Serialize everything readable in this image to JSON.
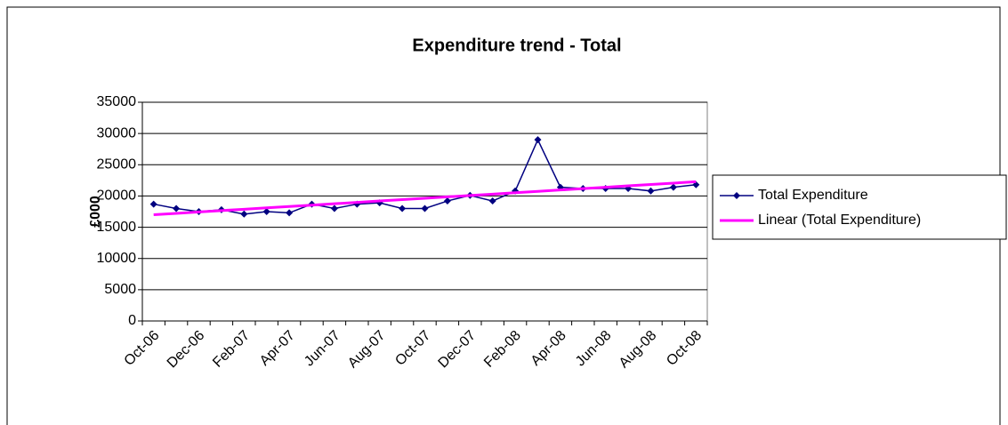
{
  "chart_data": {
    "type": "line",
    "title": "Expenditure trend - Total",
    "y_label": "£000",
    "categories": [
      "Oct-06",
      null,
      "Dec-06",
      null,
      "Feb-07",
      null,
      "Apr-07",
      null,
      "Jun-07",
      null,
      "Aug-07",
      null,
      "Oct-07",
      null,
      "Dec-07",
      null,
      "Feb-08",
      null,
      "Apr-08",
      null,
      "Jun-08",
      null,
      "Aug-08",
      null,
      "Oct-08"
    ],
    "series": [
      {
        "name": "Total Expenditure",
        "color": "#000080",
        "marker": "diamond",
        "values": [
          18700,
          18000,
          17500,
          17800,
          17100,
          17500,
          17300,
          18700,
          18000,
          18700,
          18900,
          18000,
          18000,
          19200,
          20100,
          19200,
          20800,
          29000,
          21400,
          21200,
          21200,
          21200,
          20800,
          21400,
          21800
        ]
      },
      {
        "name": "Linear (Total Expenditure)",
        "color": "#ff00ff",
        "marker": "none",
        "values": [
          17000,
          17220,
          17440,
          17660,
          17880,
          18100,
          18320,
          18540,
          18760,
          18980,
          19200,
          19420,
          19640,
          19860,
          20080,
          20300,
          20520,
          20740,
          20960,
          21180,
          21400,
          21620,
          21840,
          22060,
          22280
        ]
      }
    ],
    "ylim": [
      0,
      35000
    ],
    "yticks": [
      0,
      5000,
      10000,
      15000,
      20000,
      25000,
      30000,
      35000
    ],
    "grid": true,
    "legend": "right"
  }
}
